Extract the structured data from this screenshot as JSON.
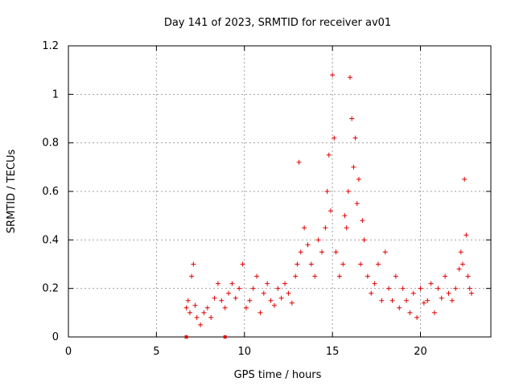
{
  "chart_data": {
    "type": "scatter",
    "title": "Day 141 of 2023, SRMTID for receiver av01",
    "xlabel": "GPS time / hours",
    "ylabel": "SRMTID / TECUs",
    "xlim": [
      0,
      24
    ],
    "ylim": [
      0,
      1.2
    ],
    "x_ticks": [
      0,
      5,
      10,
      15,
      20
    ],
    "x_tick_labels": [
      "0",
      "5",
      "10",
      "15",
      "20"
    ],
    "y_ticks": [
      0,
      0.2,
      0.4,
      0.6,
      0.8,
      1.0,
      1.2
    ],
    "y_tick_labels": [
      "0",
      "0.2",
      "0.4",
      "0.6",
      "0.8",
      "1",
      "1.2"
    ],
    "grid": true,
    "marker": "+",
    "color": "#e00000",
    "data_span_hours": [
      6.7,
      22.9
    ],
    "axis_markers_x": [
      6.7,
      8.9
    ],
    "series": [
      {
        "name": "av01",
        "x": [
          6.7,
          6.8,
          6.9,
          7.0,
          7.1,
          7.2,
          7.3,
          7.5,
          7.7,
          7.9,
          8.1,
          8.3,
          8.5,
          8.7,
          8.9,
          9.1,
          9.3,
          9.5,
          9.7,
          9.9,
          10.1,
          10.3,
          10.5,
          10.7,
          10.9,
          11.1,
          11.3,
          11.5,
          11.7,
          11.9,
          12.1,
          12.3,
          12.5,
          12.7,
          12.9,
          13.0,
          13.1,
          13.2,
          13.4,
          13.6,
          13.8,
          14.0,
          14.2,
          14.4,
          14.6,
          14.7,
          14.8,
          14.9,
          15.0,
          15.1,
          15.2,
          15.4,
          15.6,
          15.7,
          15.8,
          15.9,
          16.0,
          16.1,
          16.2,
          16.3,
          16.4,
          16.5,
          16.6,
          16.7,
          16.8,
          17.0,
          17.2,
          17.4,
          17.6,
          17.8,
          18.0,
          18.2,
          18.4,
          18.6,
          18.8,
          19.0,
          19.2,
          19.4,
          19.6,
          19.8,
          20.0,
          20.2,
          20.4,
          20.6,
          20.8,
          21.0,
          21.2,
          21.4,
          21.6,
          21.8,
          22.0,
          22.2,
          22.3,
          22.4,
          22.5,
          22.6,
          22.7,
          22.8,
          22.9
        ],
        "y": [
          0.12,
          0.15,
          0.1,
          0.25,
          0.3,
          0.13,
          0.08,
          0.05,
          0.1,
          0.12,
          0.08,
          0.16,
          0.22,
          0.15,
          0.12,
          0.18,
          0.22,
          0.16,
          0.2,
          0.3,
          0.12,
          0.15,
          0.2,
          0.25,
          0.1,
          0.18,
          0.22,
          0.15,
          0.13,
          0.2,
          0.16,
          0.22,
          0.18,
          0.14,
          0.25,
          0.3,
          0.72,
          0.35,
          0.45,
          0.38,
          0.3,
          0.25,
          0.4,
          0.35,
          0.45,
          0.6,
          0.75,
          0.52,
          1.08,
          0.82,
          0.35,
          0.25,
          0.3,
          0.5,
          0.45,
          0.6,
          1.07,
          0.9,
          0.7,
          0.82,
          0.55,
          0.65,
          0.3,
          0.48,
          0.4,
          0.25,
          0.18,
          0.22,
          0.3,
          0.15,
          0.35,
          0.2,
          0.15,
          0.25,
          0.12,
          0.2,
          0.15,
          0.1,
          0.18,
          0.08,
          0.2,
          0.14,
          0.15,
          0.22,
          0.1,
          0.2,
          0.16,
          0.25,
          0.18,
          0.15,
          0.2,
          0.28,
          0.35,
          0.3,
          0.65,
          0.42,
          0.25,
          0.2,
          0.18
        ]
      }
    ]
  }
}
